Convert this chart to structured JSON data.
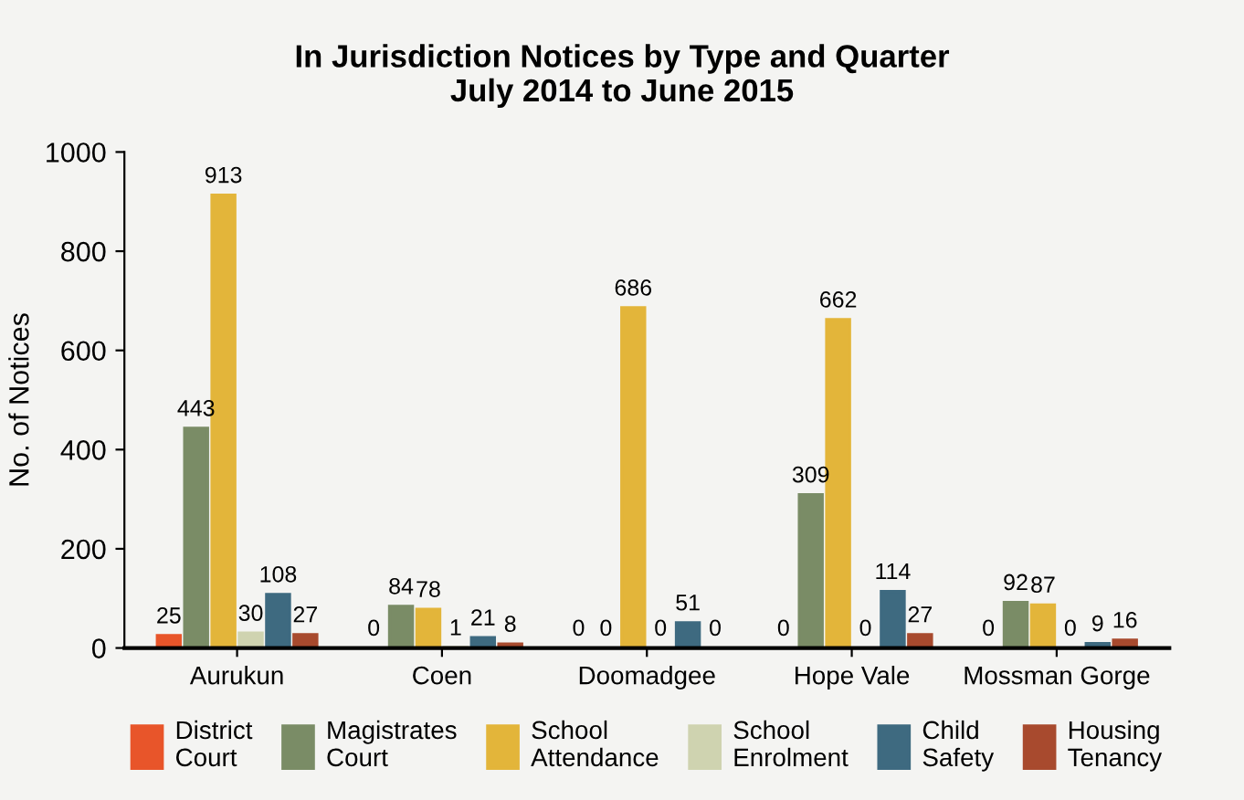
{
  "chart_data": {
    "type": "bar",
    "title": "In Jurisdiction Notices by Type and Quarter\nJuly 2014 to June 2015",
    "ylabel": "No. of Notices",
    "categories": [
      "Aurukun",
      "Coen",
      "Doomadgee",
      "Hope Vale",
      "Mossman Gorge"
    ],
    "series": [
      {
        "name": "District\nCourt",
        "color": "#e8552a",
        "values": [
          25,
          0,
          0,
          0,
          0
        ]
      },
      {
        "name": "Magistrates\nCourt",
        "color": "#7a8c66",
        "values": [
          443,
          84,
          0,
          309,
          92
        ]
      },
      {
        "name": "School\nAttendance",
        "color": "#e3b53a",
        "values": [
          913,
          78,
          686,
          662,
          87
        ]
      },
      {
        "name": "School\nEnrolment",
        "color": "#cfd3b0",
        "values": [
          30,
          1,
          0,
          0,
          0
        ]
      },
      {
        "name": "Child\nSafety",
        "color": "#3e6a80",
        "values": [
          108,
          21,
          51,
          114,
          9
        ]
      },
      {
        "name": "Housing\nTenancy",
        "color": "#a84a2e",
        "values": [
          27,
          8,
          0,
          27,
          16
        ]
      }
    ],
    "ylim": [
      0,
      1000
    ],
    "yticks": [
      0,
      200,
      400,
      600,
      800,
      1000
    ],
    "grid": false,
    "legend": "bottom",
    "data_labels": true
  }
}
